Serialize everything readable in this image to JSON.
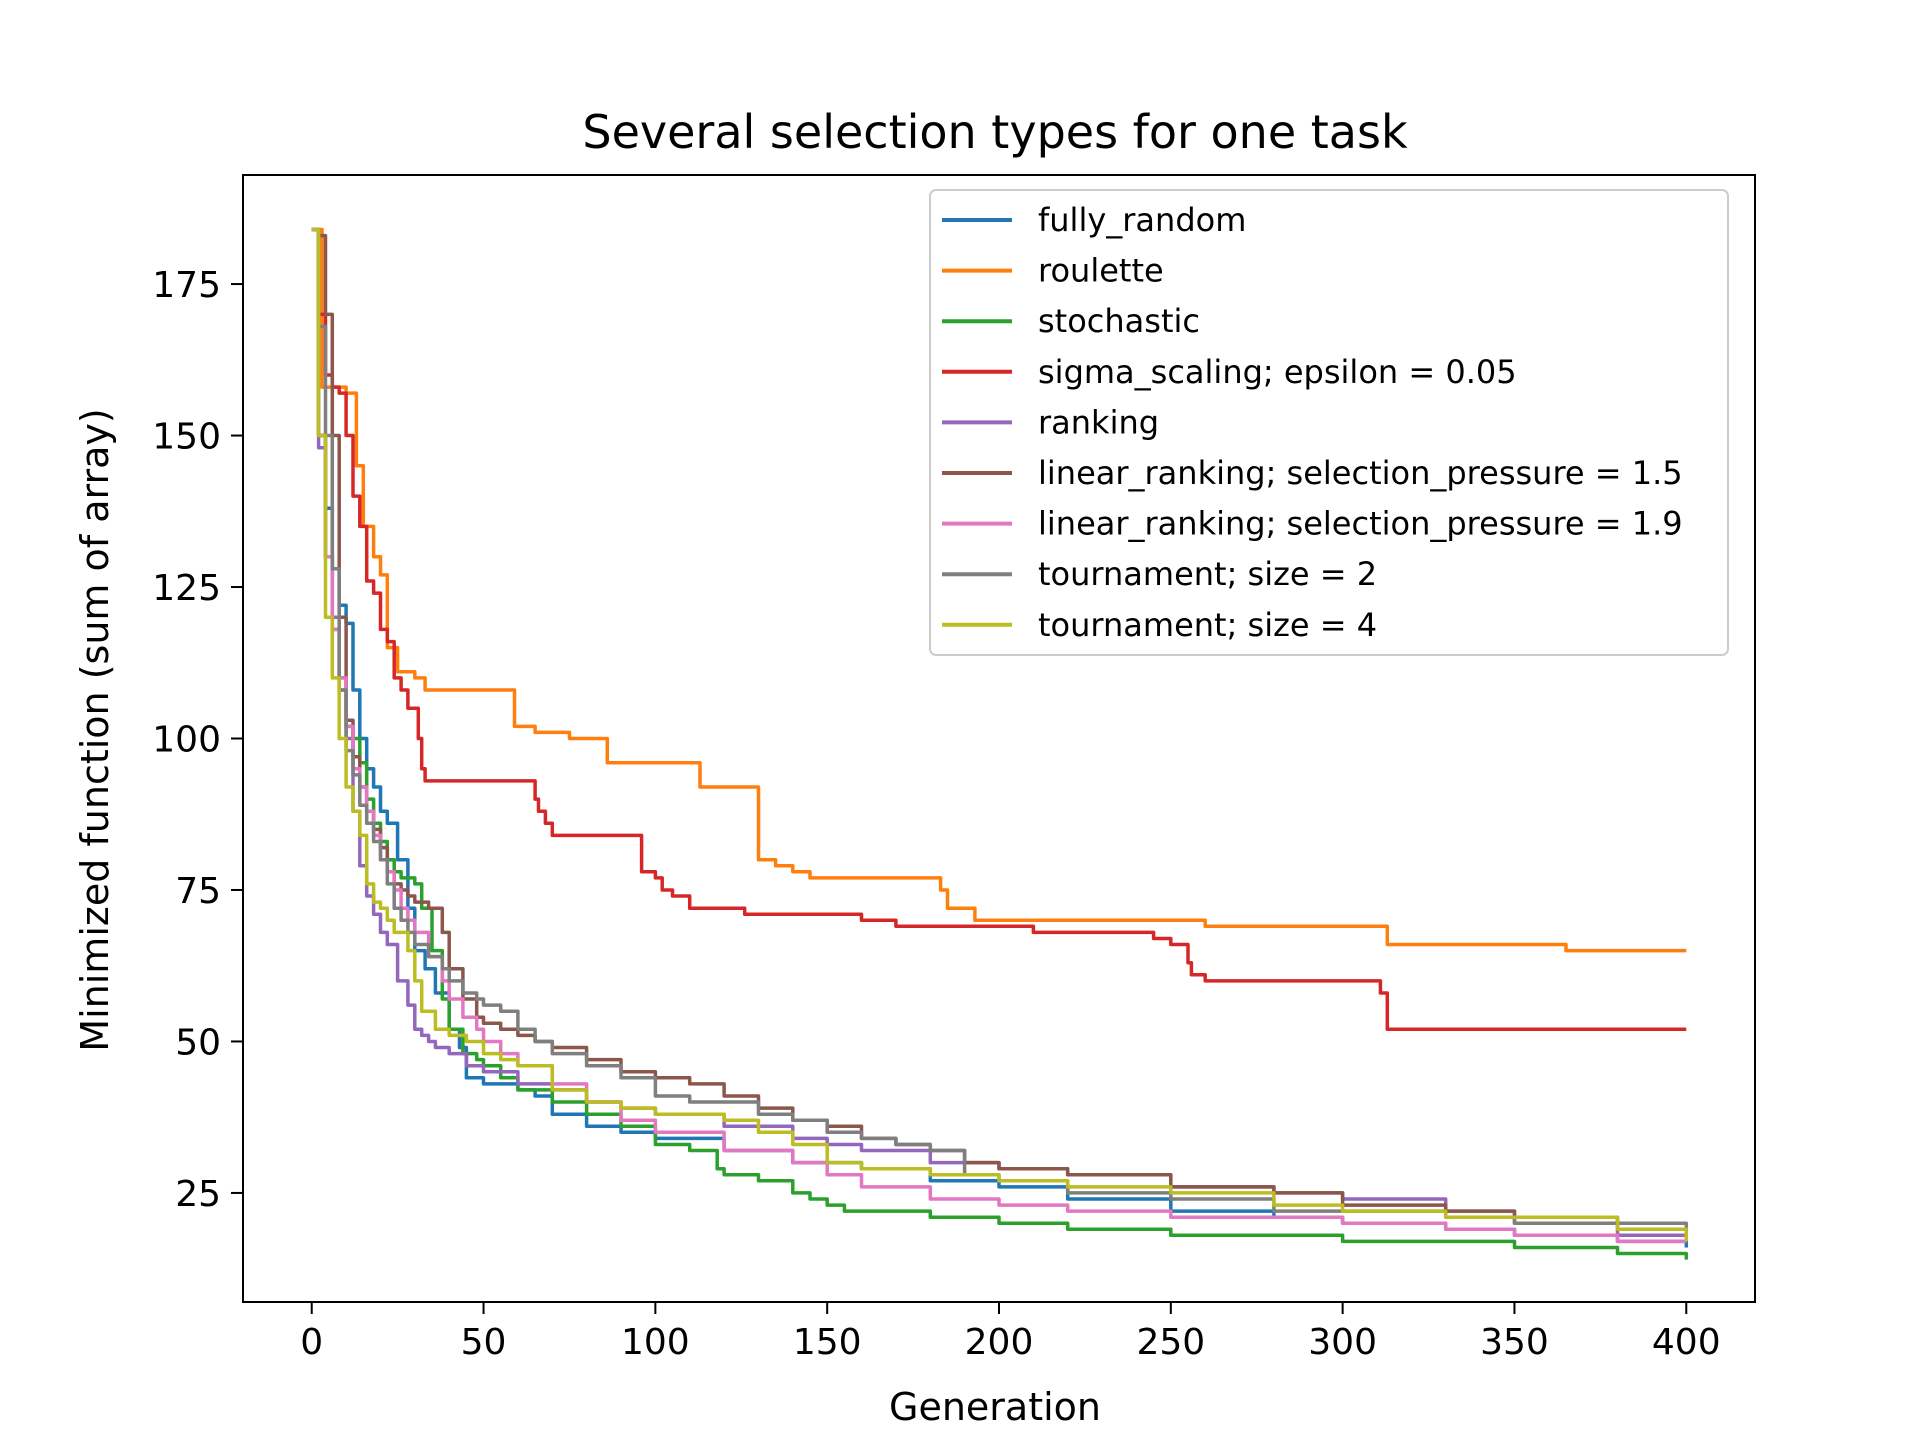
{
  "chart_data": {
    "type": "line",
    "title": "Several selection types for one task",
    "xlabel": "Generation",
    "ylabel": "Minimized function (sum of array)",
    "xlim": [
      -20,
      420
    ],
    "ylim": [
      7,
      193
    ],
    "xticks": [
      0,
      50,
      100,
      150,
      200,
      250,
      300,
      350,
      400
    ],
    "yticks": [
      25,
      50,
      75,
      100,
      125,
      150,
      175
    ],
    "grid": false,
    "legend": "top-right",
    "series": [
      {
        "name": "fully_random",
        "color": "#1f77b4",
        "x": [
          0,
          2,
          4,
          6,
          8,
          10,
          12,
          14,
          16,
          18,
          20,
          22,
          25,
          28,
          30,
          33,
          36,
          40,
          43,
          45,
          50,
          60,
          65,
          70,
          80,
          90,
          100,
          120,
          140,
          160,
          180,
          200,
          220,
          250,
          280,
          300,
          330,
          350,
          380,
          400
        ],
        "y": [
          184,
          150,
          138,
          128,
          122,
          119,
          108,
          100,
          95,
          92,
          88,
          86,
          80,
          72,
          65,
          62,
          58,
          52,
          49,
          44,
          43,
          42,
          41,
          38,
          36,
          35,
          34,
          32,
          30,
          29,
          27,
          26,
          24,
          22,
          21,
          20,
          19,
          18,
          17,
          16
        ]
      },
      {
        "name": "roulette",
        "color": "#ff7f0e",
        "x": [
          0,
          3,
          5,
          10,
          13,
          15,
          18,
          20,
          22,
          25,
          27,
          30,
          33,
          40,
          50,
          58,
          59,
          65,
          75,
          80,
          85,
          86,
          95,
          100,
          112,
          113,
          125,
          129,
          130,
          135,
          140,
          145,
          150,
          160,
          170,
          180,
          183,
          185,
          190,
          193,
          195,
          200,
          220,
          240,
          260,
          280,
          300,
          312,
          313,
          320,
          350,
          365,
          400
        ],
        "y": [
          184,
          158,
          158,
          157,
          145,
          135,
          130,
          127,
          115,
          111,
          111,
          110,
          108,
          108,
          108,
          108,
          102,
          101,
          100,
          100,
          100,
          96,
          96,
          96,
          96,
          92,
          92,
          92,
          80,
          79,
          78,
          77,
          77,
          77,
          77,
          77,
          75,
          72,
          72,
          70,
          70,
          70,
          70,
          70,
          69,
          69,
          69,
          69,
          66,
          66,
          66,
          65,
          65
        ]
      },
      {
        "name": "stochastic",
        "color": "#2ca02c",
        "x": [
          0,
          2,
          4,
          6,
          8,
          10,
          12,
          14,
          16,
          18,
          20,
          22,
          24,
          26,
          28,
          30,
          32,
          35,
          38,
          40,
          44,
          48,
          50,
          55,
          60,
          70,
          80,
          90,
          100,
          110,
          118,
          120,
          130,
          140,
          145,
          150,
          155,
          170,
          180,
          190,
          200,
          220,
          250,
          280,
          300,
          320,
          350,
          380,
          400
        ],
        "y": [
          184,
          150,
          130,
          118,
          108,
          102,
          100,
          96,
          90,
          86,
          83,
          80,
          78,
          77,
          77,
          76,
          72,
          65,
          57,
          52,
          48,
          47,
          46,
          44,
          42,
          40,
          38,
          36,
          33,
          32,
          29,
          28,
          27,
          25,
          24,
          23,
          22,
          22,
          21,
          21,
          20,
          19,
          18,
          18,
          17,
          17,
          16,
          15,
          14
        ]
      },
      {
        "name": "sigma_scaling; epsilon = 0.05",
        "color": "#d62728",
        "x": [
          0,
          2,
          4,
          6,
          8,
          10,
          12,
          14,
          16,
          18,
          20,
          22,
          24,
          26,
          28,
          30,
          31,
          32,
          33,
          40,
          50,
          60,
          65,
          66,
          68,
          70,
          80,
          90,
          95,
          96,
          100,
          102,
          105,
          110,
          120,
          125,
          126,
          130,
          150,
          160,
          170,
          180,
          200,
          210,
          220,
          230,
          240,
          245,
          250,
          254,
          255,
          256,
          260,
          300,
          310,
          311,
          313,
          315,
          350,
          400
        ],
        "y": [
          184,
          170,
          160,
          158,
          157,
          150,
          140,
          135,
          126,
          124,
          118,
          116,
          110,
          108,
          105,
          105,
          100,
          95,
          93,
          93,
          93,
          93,
          90,
          88,
          86,
          84,
          84,
          84,
          84,
          78,
          77,
          75,
          74,
          72,
          72,
          72,
          71,
          71,
          71,
          70,
          69,
          69,
          69,
          68,
          68,
          68,
          68,
          67,
          66,
          66,
          63,
          61,
          60,
          60,
          60,
          58,
          52,
          52,
          52,
          52
        ]
      },
      {
        "name": "ranking",
        "color": "#9467bd",
        "x": [
          0,
          2,
          4,
          6,
          8,
          10,
          12,
          14,
          16,
          18,
          20,
          22,
          25,
          28,
          30,
          32,
          34,
          36,
          40,
          45,
          50,
          60,
          70,
          80,
          90,
          100,
          120,
          140,
          150,
          160,
          180,
          200,
          220,
          250,
          280,
          300,
          330,
          350,
          380,
          400
        ],
        "y": [
          184,
          148,
          130,
          120,
          110,
          100,
          88,
          79,
          74,
          71,
          68,
          66,
          60,
          56,
          52,
          51,
          50,
          49,
          48,
          46,
          45,
          43,
          42,
          40,
          39,
          38,
          36,
          34,
          33,
          32,
          30,
          29,
          28,
          26,
          25,
          24,
          22,
          20,
          18,
          17
        ]
      },
      {
        "name": "linear_ranking; selection_pressure = 1.5",
        "color": "#8c564b",
        "x": [
          0,
          2,
          4,
          6,
          8,
          10,
          12,
          14,
          16,
          18,
          20,
          22,
          24,
          26,
          28,
          30,
          34,
          38,
          40,
          44,
          48,
          50,
          55,
          60,
          65,
          70,
          80,
          90,
          100,
          110,
          120,
          130,
          140,
          150,
          160,
          170,
          180,
          190,
          200,
          220,
          250,
          280,
          300,
          330,
          350,
          380,
          400
        ],
        "y": [
          184,
          183,
          170,
          150,
          120,
          103,
          97,
          92,
          88,
          85,
          82,
          78,
          76,
          75,
          74,
          73,
          72,
          68,
          62,
          57,
          54,
          53,
          52,
          51,
          50,
          49,
          47,
          45,
          44,
          43,
          41,
          39,
          37,
          36,
          34,
          33,
          32,
          30,
          29,
          28,
          26,
          25,
          23,
          22,
          21,
          20,
          20
        ]
      },
      {
        "name": "linear_ranking; selection_pressure = 1.9",
        "color": "#e377c2",
        "x": [
          0,
          2,
          4,
          6,
          8,
          10,
          12,
          14,
          16,
          18,
          20,
          22,
          24,
          26,
          28,
          30,
          34,
          38,
          40,
          44,
          48,
          50,
          55,
          60,
          70,
          80,
          90,
          100,
          120,
          140,
          150,
          160,
          180,
          200,
          220,
          250,
          280,
          300,
          330,
          350,
          380,
          400
        ],
        "y": [
          184,
          150,
          130,
          118,
          110,
          102,
          95,
          92,
          88,
          84,
          80,
          78,
          75,
          72,
          70,
          68,
          64,
          60,
          57,
          54,
          52,
          50,
          48,
          46,
          43,
          40,
          37,
          35,
          32,
          30,
          28,
          26,
          24,
          23,
          22,
          21,
          21,
          20,
          19,
          18,
          17,
          17
        ]
      },
      {
        "name": "tournament; size = 2",
        "color": "#7f7f7f",
        "x": [
          0,
          2,
          4,
          6,
          8,
          10,
          12,
          14,
          16,
          18,
          20,
          22,
          24,
          26,
          28,
          30,
          34,
          38,
          40,
          44,
          48,
          50,
          55,
          60,
          65,
          70,
          80,
          90,
          100,
          110,
          120,
          130,
          140,
          150,
          160,
          170,
          180,
          190,
          200,
          220,
          250,
          280,
          300,
          330,
          350,
          380,
          400
        ],
        "y": [
          184,
          168,
          150,
          128,
          108,
          98,
          94,
          89,
          86,
          83,
          80,
          76,
          72,
          70,
          68,
          66,
          64,
          62,
          60,
          58,
          57,
          56,
          55,
          52,
          50,
          48,
          46,
          44,
          41,
          40,
          40,
          38,
          37,
          35,
          34,
          33,
          32,
          28,
          27,
          25,
          24,
          22,
          22,
          21,
          20,
          20,
          19
        ]
      },
      {
        "name": "tournament; size = 4",
        "color": "#bcbd22",
        "x": [
          0,
          2,
          4,
          6,
          8,
          10,
          12,
          14,
          16,
          18,
          20,
          22,
          24,
          26,
          28,
          30,
          32,
          36,
          40,
          45,
          50,
          55,
          60,
          70,
          80,
          90,
          100,
          110,
          120,
          130,
          140,
          150,
          160,
          180,
          200,
          220,
          250,
          280,
          300,
          330,
          350,
          380,
          400
        ],
        "y": [
          184,
          150,
          120,
          110,
          100,
          92,
          88,
          84,
          76,
          73,
          72,
          70,
          68,
          68,
          65,
          60,
          55,
          52,
          51,
          50,
          48,
          47,
          46,
          42,
          40,
          39,
          38,
          38,
          37,
          35,
          33,
          30,
          29,
          28,
          27,
          26,
          25,
          23,
          22,
          21,
          21,
          19,
          17
        ]
      }
    ]
  }
}
